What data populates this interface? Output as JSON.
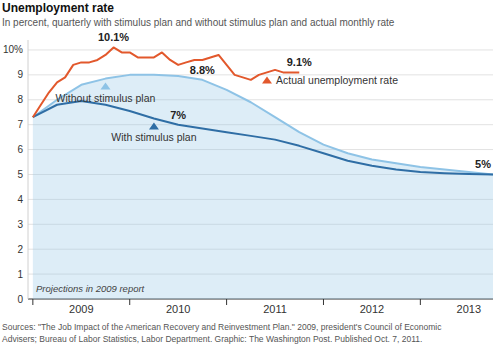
{
  "chart_data": {
    "type": "line",
    "title": "Unemployment rate",
    "subtitle": "In percent, quarterly with stimulus plan and without stimulus plan and actual monthly rate",
    "xlim": [
      2008.95,
      2013.75
    ],
    "xticks": [
      {
        "value": 2009.5,
        "label": "2009"
      },
      {
        "value": 2010.5,
        "label": "2010"
      },
      {
        "value": 2011.5,
        "label": "2011"
      },
      {
        "value": 2012.5,
        "label": "2012"
      },
      {
        "value": 2013.5,
        "label": "2013"
      }
    ],
    "ylim": [
      0,
      10.4
    ],
    "yticks": [
      0,
      1,
      2,
      3,
      4,
      5,
      6,
      7,
      8,
      9,
      {
        "value": 10,
        "label": "10%"
      }
    ],
    "grid": true,
    "series": [
      {
        "name": "Without stimulus plan",
        "type": "area",
        "color": "#8ec3e6",
        "x": [
          2009,
          2009.25,
          2009.5,
          2009.75,
          2010,
          2010.25,
          2010.5,
          2010.75,
          2011,
          2011.25,
          2011.5,
          2011.75,
          2012,
          2012.25,
          2012.5,
          2012.75,
          2013,
          2013.25,
          2013.5,
          2013.75
        ],
        "values": [
          7.3,
          8.0,
          8.6,
          8.85,
          9.0,
          9.0,
          8.95,
          8.8,
          8.4,
          7.9,
          7.3,
          6.7,
          6.2,
          5.85,
          5.6,
          5.45,
          5.3,
          5.2,
          5.1,
          5.0
        ]
      },
      {
        "name": "With stimulus plan",
        "type": "line",
        "color": "#2f6ea5",
        "x": [
          2009,
          2009.25,
          2009.5,
          2009.75,
          2010,
          2010.25,
          2010.5,
          2010.75,
          2011,
          2011.25,
          2011.5,
          2011.75,
          2012,
          2012.25,
          2012.5,
          2012.75,
          2013,
          2013.25,
          2013.5,
          2013.75
        ],
        "values": [
          7.3,
          7.8,
          7.95,
          7.8,
          7.55,
          7.25,
          7.0,
          6.85,
          6.7,
          6.55,
          6.4,
          6.15,
          5.85,
          5.55,
          5.35,
          5.2,
          5.1,
          5.05,
          5.02,
          5.0
        ]
      },
      {
        "name": "Actual unemployment rate",
        "type": "line",
        "color": "#e2582c",
        "x": [
          2009,
          2009.083,
          2009.167,
          2009.25,
          2009.333,
          2009.417,
          2009.5,
          2009.583,
          2009.667,
          2009.75,
          2009.833,
          2009.917,
          2010,
          2010.083,
          2010.167,
          2010.25,
          2010.333,
          2010.417,
          2010.5,
          2010.583,
          2010.667,
          2010.75,
          2010.833,
          2010.917,
          2011,
          2011.083,
          2011.167,
          2011.25,
          2011.333,
          2011.417,
          2011.5,
          2011.583,
          2011.667,
          2011.75
        ],
        "values": [
          7.3,
          7.8,
          8.3,
          8.7,
          8.9,
          9.4,
          9.5,
          9.5,
          9.6,
          9.8,
          10.1,
          9.9,
          9.9,
          9.7,
          9.7,
          9.7,
          9.9,
          9.6,
          9.4,
          9.5,
          9.6,
          9.6,
          9.7,
          9.8,
          9.4,
          9.0,
          8.9,
          8.8,
          9.0,
          9.1,
          9.2,
          9.1,
          9.1,
          9.1
        ]
      }
    ],
    "annotations": [
      {
        "text": "10.1%",
        "x": 2009.833,
        "y": 10.1
      },
      {
        "text": "8.8%",
        "x": 2010.75,
        "y": 8.8
      },
      {
        "text": "7%",
        "x": 2010.5,
        "y": 7
      },
      {
        "text": "9.1%",
        "x": 2011.75,
        "y": 9.1
      },
      {
        "text": "5%",
        "x": 2013.75,
        "y": 5
      }
    ],
    "note": "Projections in 2009 report",
    "source": [
      "Sources: \"The Job Impact of the American Recovery and Reinvestment Plan.\" 2009, president's Council of Economic",
      "Advisers; Bureau of Labor Statistics, Labor Department. Graphic: The Washington Post. Published Oct. 7, 2011."
    ]
  }
}
